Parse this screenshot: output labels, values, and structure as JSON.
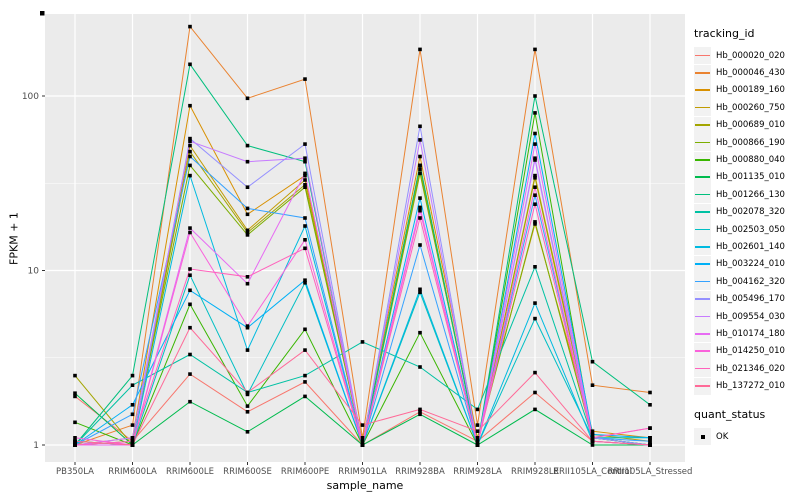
{
  "chart_data": {
    "type": "line",
    "title": "",
    "xlabel": "sample_name",
    "ylabel": "FPKM + 1",
    "y_scale": "log10",
    "y_ticks": [
      "1",
      "10",
      "100"
    ],
    "y_tick_values": [
      1,
      10,
      100
    ],
    "y_minor_values": [
      3.162,
      31.62
    ],
    "ylim_approx": [
      0.8,
      295
    ],
    "grid": true,
    "legend_position": "right",
    "panel_bg": "#EBEBEB",
    "grid_color": "#FFFFFF",
    "point_color": "#000000",
    "axis_text_color": "#4D4D4D",
    "categories": [
      "PB350LA",
      "RRIM600LA",
      "RRIM600LE",
      "RRIM600SE",
      "RRIM600PE",
      "RRIM901LA",
      "RRIM928BA",
      "RRIM928LA",
      "RRIM928LE",
      "RRII105LA_Control",
      "RRII105LA_Stressed"
    ],
    "series": [
      {
        "name": "Hb_000020_020",
        "color": "#F8766D",
        "values": [
          1.9,
          1.05,
          2.55,
          1.55,
          2.3,
          1.0,
          1.55,
          1.05,
          2.0,
          1.05,
          1.0
        ]
      },
      {
        "name": "Hb_000046_430",
        "color": "#EA8331",
        "values": [
          1.0,
          1.3,
          250,
          97,
          125,
          1.1,
          185,
          1.3,
          185,
          2.2,
          2.0
        ]
      },
      {
        "name": "Hb_000189_160",
        "color": "#D89000",
        "values": [
          1.0,
          1.1,
          88,
          21,
          35,
          1.05,
          45,
          1.1,
          18.5,
          1.2,
          1.1
        ]
      },
      {
        "name": "Hb_000260_750",
        "color": "#C09B00",
        "values": [
          1.05,
          1.0,
          52,
          17,
          33,
          1.0,
          40,
          1.0,
          35,
          1.15,
          1.05
        ]
      },
      {
        "name": "Hb_000689_010",
        "color": "#A3A500",
        "values": [
          2.5,
          1.0,
          48,
          16.5,
          31,
          1.0,
          38,
          1.0,
          34,
          1.1,
          1.0
        ]
      },
      {
        "name": "Hb_000866_190",
        "color": "#7CAE00",
        "values": [
          1.0,
          1.05,
          40,
          16,
          30,
          1.0,
          36,
          1.05,
          19,
          1.1,
          1.0
        ]
      },
      {
        "name": "Hb_000880_040",
        "color": "#39B600",
        "values": [
          1.35,
          1.0,
          6.4,
          1.67,
          4.6,
          1.0,
          4.4,
          1.0,
          80,
          1.1,
          1.0
        ]
      },
      {
        "name": "Hb_001135_010",
        "color": "#00BB4E",
        "values": [
          1.98,
          1.0,
          1.77,
          1.19,
          1.9,
          1.0,
          1.5,
          1.0,
          1.6,
          1.0,
          1.0
        ]
      },
      {
        "name": "Hb_001266_130",
        "color": "#00BF7D",
        "values": [
          1.0,
          2.5,
          152,
          52,
          42,
          1.0,
          40,
          1.0,
          100,
          3.0,
          1.7
        ]
      },
      {
        "name": "Hb_002078_320",
        "color": "#00C1A3",
        "values": [
          1.0,
          2.2,
          3.3,
          2.0,
          2.5,
          3.9,
          2.8,
          1.6,
          10.5,
          1.1,
          1.1
        ]
      },
      {
        "name": "Hb_002503_050",
        "color": "#00BFC4",
        "values": [
          1.05,
          1.0,
          9.4,
          1.95,
          8.5,
          1.0,
          7.5,
          1.0,
          5.3,
          1.1,
          1.0
        ]
      },
      {
        "name": "Hb_002601_140",
        "color": "#00BAE0",
        "values": [
          1.0,
          1.0,
          35,
          3.5,
          18,
          1.0,
          7.8,
          1.0,
          6.5,
          1.05,
          1.0
        ]
      },
      {
        "name": "Hb_003224_010",
        "color": "#00B0F6",
        "values": [
          1.0,
          1.7,
          7.7,
          4.7,
          8.8,
          1.0,
          26,
          1.0,
          61,
          1.15,
          1.1
        ]
      },
      {
        "name": "Hb_004162_320",
        "color": "#35A2FF",
        "values": [
          1.0,
          1.5,
          45,
          22.7,
          20,
          1.0,
          14,
          1.0,
          27,
          1.1,
          1.05
        ]
      },
      {
        "name": "Hb_005496_170",
        "color": "#9590FF",
        "values": [
          1.0,
          1.0,
          57,
          30,
          53,
          1.0,
          67,
          1.0,
          44,
          1.1,
          1.0
        ]
      },
      {
        "name": "Hb_009554_030",
        "color": "#C77CFF",
        "values": [
          1.0,
          1.1,
          55,
          42,
          44,
          1.0,
          56,
          1.0,
          43,
          1.05,
          1.0
        ]
      },
      {
        "name": "Hb_010174_180",
        "color": "#E76BF3",
        "values": [
          1.0,
          1.0,
          17.5,
          8.4,
          36,
          1.0,
          23,
          1.0,
          53,
          1.1,
          1.25
        ]
      },
      {
        "name": "Hb_014250_010",
        "color": "#FA62DB",
        "values": [
          1.1,
          1.0,
          16.5,
          4.8,
          15,
          1.0,
          22,
          1.0,
          30,
          1.05,
          1.0
        ]
      },
      {
        "name": "Hb_021346_020",
        "color": "#FF62BC",
        "values": [
          1.0,
          1.05,
          10.2,
          9.2,
          13.4,
          1.0,
          20,
          1.0,
          24,
          1.1,
          1.25
        ]
      },
      {
        "name": "Hb_137272_010",
        "color": "#FF6A98",
        "values": [
          1.05,
          1.0,
          4.7,
          2.0,
          3.5,
          1.3,
          1.6,
          1.2,
          2.6,
          1.05,
          1.0
        ]
      }
    ],
    "legend": {
      "color_title": "tracking_id",
      "shape_title": "quant_status",
      "shape_items": [
        {
          "label": "OK"
        }
      ]
    }
  }
}
